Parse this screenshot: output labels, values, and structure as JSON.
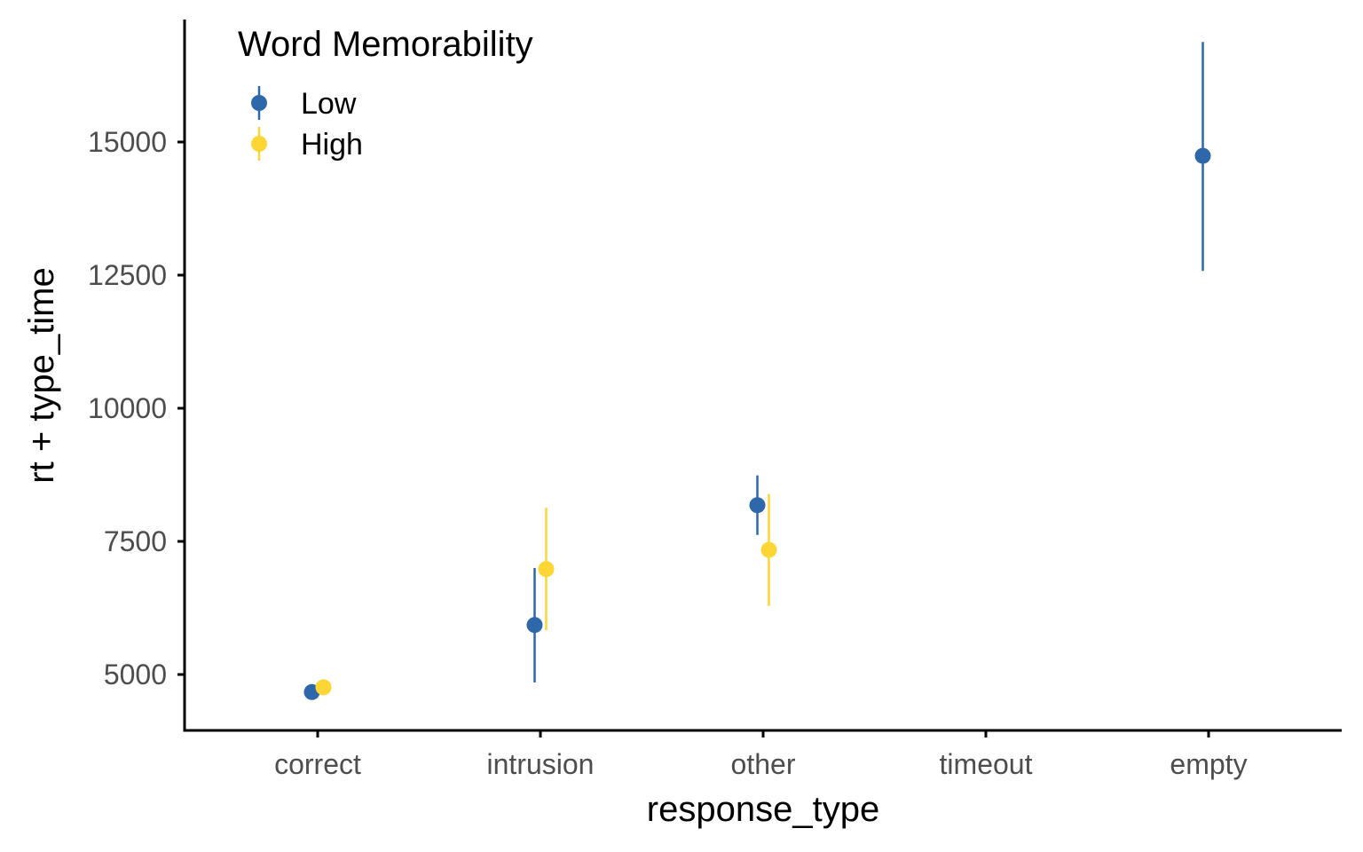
{
  "chart_data": {
    "type": "scatter",
    "subtype": "pointrange",
    "title": "",
    "xlabel": "response_type",
    "ylabel": "rt + type_time",
    "categories": [
      "correct",
      "intrusion",
      "other",
      "timeout",
      "empty"
    ],
    "ylim": [
      3950,
      17300
    ],
    "yticks": [
      5000,
      7500,
      10000,
      12500,
      15000
    ],
    "grid": false,
    "legend": {
      "title": "Word Memorability",
      "position": "top-left"
    },
    "series": [
      {
        "name": "Low",
        "color": "#2e67aa",
        "points": [
          {
            "category": "correct",
            "y": 4670,
            "lo": null,
            "hi": null
          },
          {
            "category": "intrusion",
            "y": 5930,
            "lo": 4850,
            "hi": 7000
          },
          {
            "category": "other",
            "y": 8180,
            "lo": 7620,
            "hi": 8740
          },
          {
            "category": "empty",
            "y": 14740,
            "lo": 12580,
            "hi": 16880
          }
        ]
      },
      {
        "name": "High",
        "color": "#fdd635",
        "points": [
          {
            "category": "correct",
            "y": 4760,
            "lo": null,
            "hi": null
          },
          {
            "category": "intrusion",
            "y": 6980,
            "lo": 5830,
            "hi": 8130
          },
          {
            "category": "other",
            "y": 7340,
            "lo": 6290,
            "hi": 8390
          }
        ]
      }
    ]
  }
}
